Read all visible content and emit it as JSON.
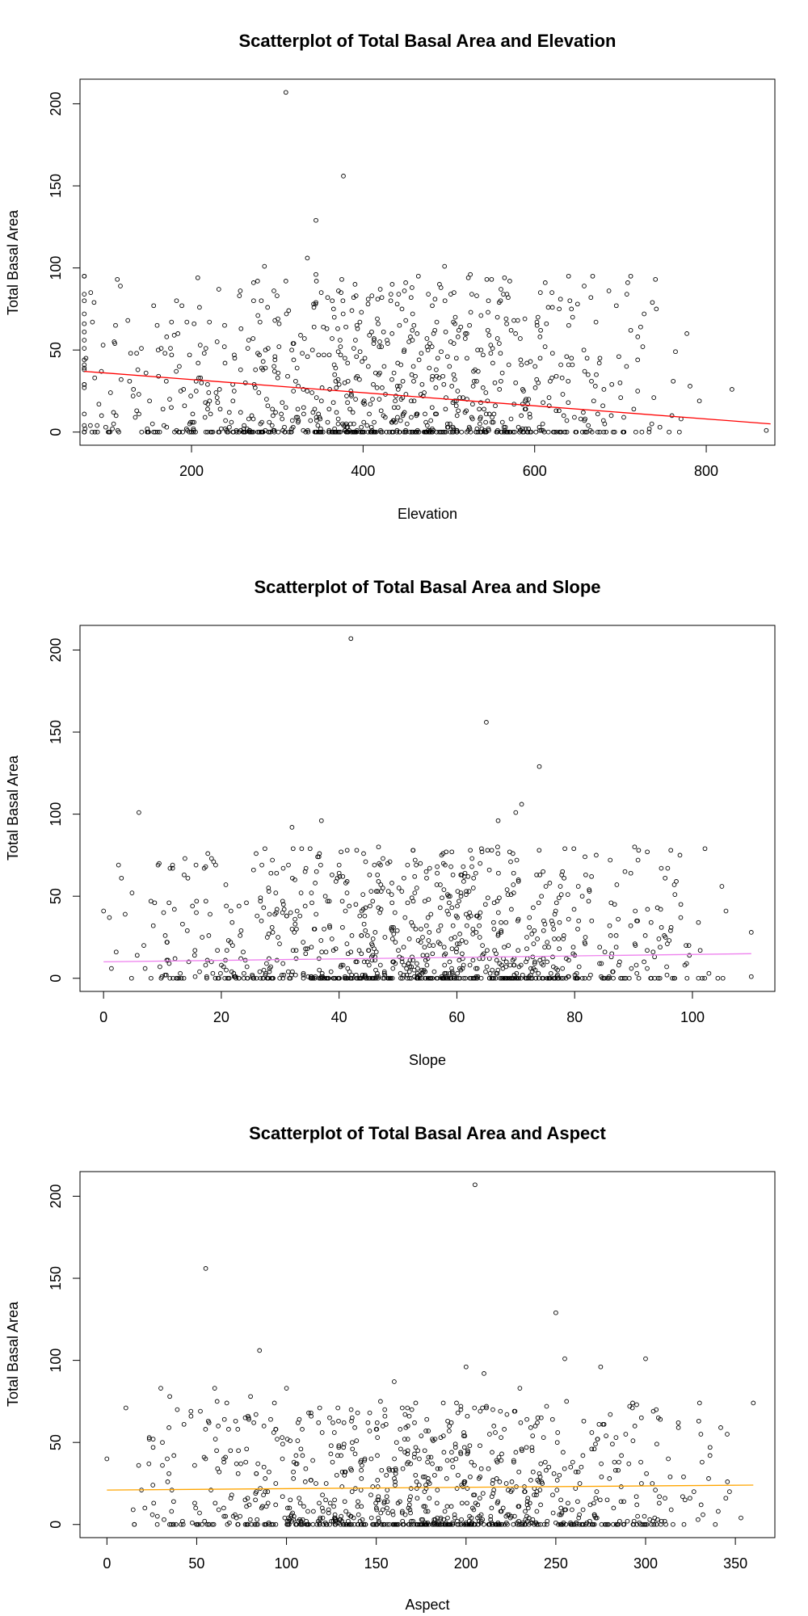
{
  "chart_data": [
    {
      "type": "scatter",
      "title": "Scatterplot of Total Basal Area and Elevation",
      "xlabel": "Elevation",
      "ylabel": "Total Basal Area",
      "xlim": [
        70,
        880
      ],
      "ylim": [
        -8,
        215
      ],
      "xticks": [
        200,
        400,
        600,
        800
      ],
      "yticks": [
        0,
        50,
        100,
        150,
        200
      ],
      "fit_line": {
        "color": "#ff0000",
        "x": [
          75,
          875
        ],
        "y": [
          37,
          5
        ]
      },
      "n_points": 1000,
      "cloud": {
        "x_range": [
          75,
          875
        ],
        "x_mode": 390,
        "y_max": 95
      },
      "outliers": [
        {
          "x": 95,
          "y": 37
        },
        {
          "x": 100,
          "y": 3
        },
        {
          "x": 310,
          "y": 207
        },
        {
          "x": 377,
          "y": 156
        },
        {
          "x": 345,
          "y": 129
        },
        {
          "x": 335,
          "y": 106
        },
        {
          "x": 285,
          "y": 101
        },
        {
          "x": 495,
          "y": 101
        },
        {
          "x": 345,
          "y": 96
        },
        {
          "x": 525,
          "y": 96
        },
        {
          "x": 310,
          "y": 92
        },
        {
          "x": 420,
          "y": 87
        },
        {
          "x": 650,
          "y": 78
        },
        {
          "x": 830,
          "y": 26
        },
        {
          "x": 870,
          "y": 1
        },
        {
          "x": 792,
          "y": 19
        },
        {
          "x": 760,
          "y": 10
        }
      ]
    },
    {
      "type": "scatter",
      "title": "Scatterplot of Total Basal Area and Slope",
      "xlabel": "Slope",
      "ylabel": "Total Basal Area",
      "xlim": [
        -4,
        114
      ],
      "ylim": [
        -8,
        215
      ],
      "xticks": [
        0,
        20,
        40,
        60,
        80,
        100
      ],
      "yticks": [
        0,
        50,
        100,
        150,
        200
      ],
      "fit_line": {
        "color": "#ee82ee",
        "x": [
          0,
          110
        ],
        "y": [
          10,
          15
        ]
      },
      "n_points": 1000,
      "cloud": {
        "x_range": [
          0,
          110
        ],
        "x_mode": 55,
        "y_max": 80
      },
      "outliers": [
        {
          "x": 42,
          "y": 207
        },
        {
          "x": 65,
          "y": 156
        },
        {
          "x": 74,
          "y": 129
        },
        {
          "x": 71,
          "y": 106
        },
        {
          "x": 6,
          "y": 101
        },
        {
          "x": 70,
          "y": 101
        },
        {
          "x": 37,
          "y": 96
        },
        {
          "x": 67,
          "y": 96
        },
        {
          "x": 32,
          "y": 92
        },
        {
          "x": 0,
          "y": 41
        },
        {
          "x": 1,
          "y": 37
        },
        {
          "x": 105,
          "y": 56
        },
        {
          "x": 110,
          "y": 28
        },
        {
          "x": 110,
          "y": 1
        },
        {
          "x": 93,
          "y": 0
        }
      ]
    },
    {
      "type": "scatter",
      "title": "Scatterplot of Total Basal Area and Aspect",
      "xlabel": "Aspect",
      "ylabel": "Total Basal Area",
      "xlim": [
        -15,
        372
      ],
      "ylim": [
        -8,
        215
      ],
      "xticks": [
        0,
        50,
        100,
        150,
        200,
        250,
        300,
        350
      ],
      "yticks": [
        0,
        50,
        100,
        150,
        200
      ],
      "fit_line": {
        "color": "#ffa500",
        "x": [
          0,
          360
        ],
        "y": [
          21,
          24
        ]
      },
      "n_points": 1000,
      "cloud": {
        "x_range": [
          0,
          360
        ],
        "x_mode": 180,
        "y_max": 75
      },
      "outliers": [
        {
          "x": 205,
          "y": 207
        },
        {
          "x": 55,
          "y": 156
        },
        {
          "x": 250,
          "y": 129
        },
        {
          "x": 85,
          "y": 106
        },
        {
          "x": 255,
          "y": 101
        },
        {
          "x": 300,
          "y": 101
        },
        {
          "x": 200,
          "y": 96
        },
        {
          "x": 275,
          "y": 96
        },
        {
          "x": 210,
          "y": 92
        },
        {
          "x": 160,
          "y": 87
        },
        {
          "x": 30,
          "y": 83
        },
        {
          "x": 60,
          "y": 83
        },
        {
          "x": 100,
          "y": 83
        },
        {
          "x": 230,
          "y": 83
        },
        {
          "x": 35,
          "y": 78
        },
        {
          "x": 80,
          "y": 78
        },
        {
          "x": 360,
          "y": 74
        },
        {
          "x": 0,
          "y": 40
        }
      ]
    }
  ]
}
